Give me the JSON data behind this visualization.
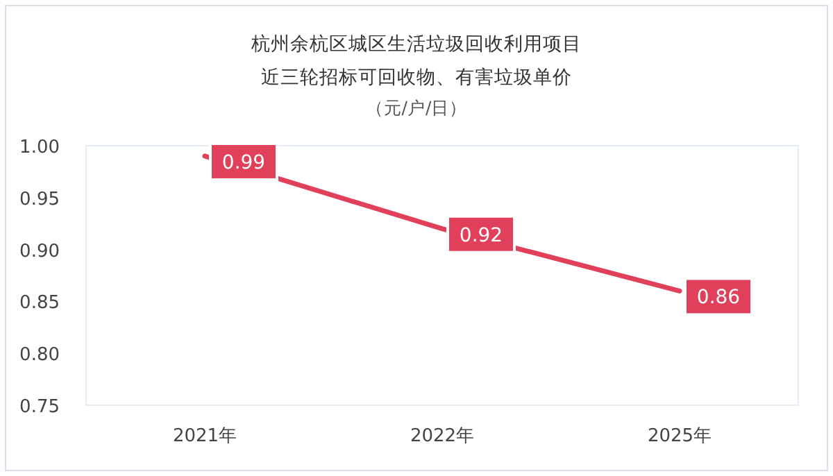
{
  "chart_data": {
    "type": "line",
    "title": "杭州余杭区城区生活垃圾回收利用项目",
    "subtitle": "近三轮招标可回收物、有害垃圾单价",
    "annotations": [
      "（元/户/日）"
    ],
    "categories": [
      "2021年",
      "2022年",
      "2025年"
    ],
    "series": [
      {
        "color": "#e0405a",
        "values": [
          0.99,
          0.92,
          0.86
        ]
      }
    ],
    "ylim": [
      0.75,
      1.0
    ],
    "yticks": [
      {
        "value": 0.75,
        "label": "0.75"
      },
      {
        "value": 0.8,
        "label": "0.80"
      },
      {
        "value": 0.85,
        "label": "0.85"
      },
      {
        "value": 0.9,
        "label": "0.90"
      },
      {
        "value": 0.95,
        "label": "0.95"
      },
      {
        "value": 1.0,
        "label": "1.00"
      }
    ],
    "data_labels": true,
    "line_style": "solid"
  }
}
